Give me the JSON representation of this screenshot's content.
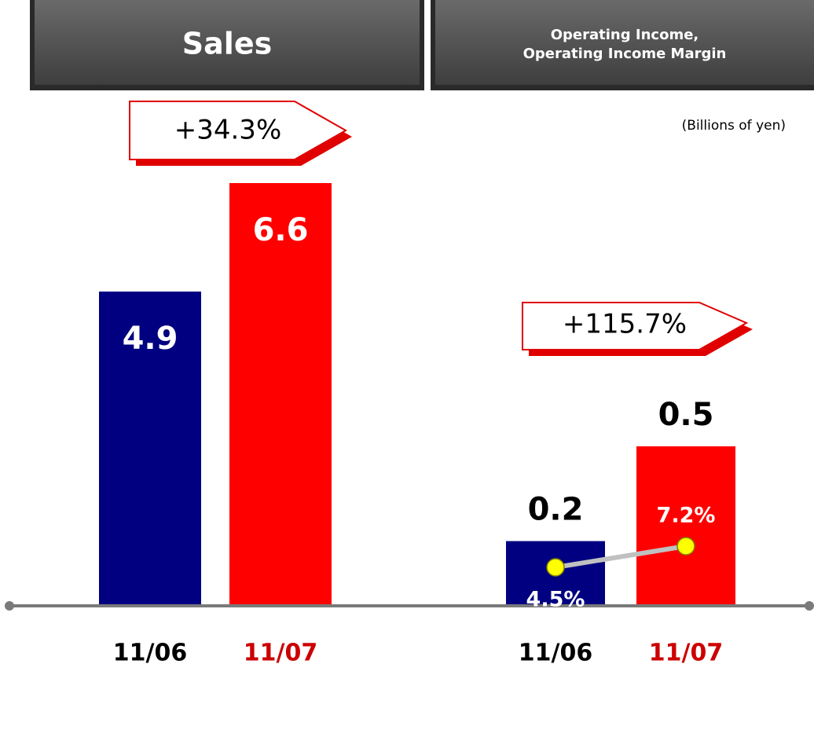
{
  "chart_data": [
    {
      "type": "bar",
      "title": "Sales",
      "categories": [
        "11/06",
        "11/07"
      ],
      "values": [
        4.9,
        6.6
      ],
      "colors": [
        "#000080",
        "#ff0000"
      ],
      "label_colors": [
        "#000000",
        "#cc0000"
      ],
      "annotation": "+34.3%"
    },
    {
      "type": "bar_line",
      "title": [
        "Operating Income,",
        "Operating Income Margin"
      ],
      "unit": "(Billions of yen)",
      "categories": [
        "11/06",
        "11/07"
      ],
      "values": [
        0.2,
        0.5
      ],
      "colors": [
        "#000080",
        "#ff0000"
      ],
      "label_colors": [
        "#000000",
        "#cc0000"
      ],
      "line_values": [
        4.5,
        7.2
      ],
      "line_value_labels": [
        "4.5%",
        "7.2%"
      ],
      "line_color": "#c0c0c0",
      "marker_color": "#ffff00",
      "annotation": "+115.7%"
    }
  ]
}
